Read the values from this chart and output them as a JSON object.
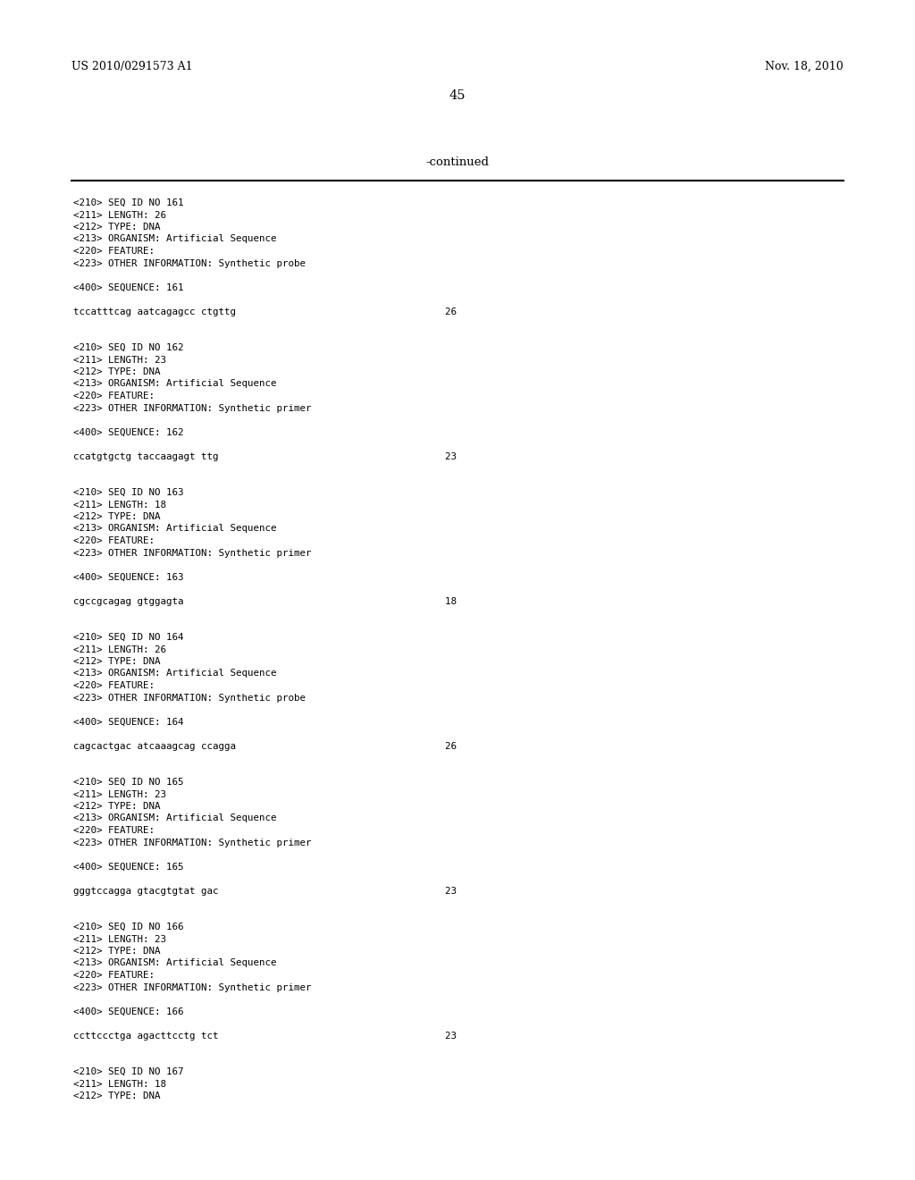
{
  "background_color": "#ffffff",
  "page_number": "45",
  "header_left": "US 2010/0291573 A1",
  "header_right": "Nov. 18, 2010",
  "continued_label": "-continued",
  "monospace_fontsize": 7.8,
  "header_fontsize": 9.0,
  "page_num_fontsize": 10.5,
  "continued_fontsize": 9.5,
  "content": [
    "<210> SEQ ID NO 161",
    "<211> LENGTH: 26",
    "<212> TYPE: DNA",
    "<213> ORGANISM: Artificial Sequence",
    "<220> FEATURE:",
    "<223> OTHER INFORMATION: Synthetic probe",
    "",
    "<400> SEQUENCE: 161",
    "",
    "tccatttcag aatcagagcc ctgttg                                    26",
    "",
    "",
    "<210> SEQ ID NO 162",
    "<211> LENGTH: 23",
    "<212> TYPE: DNA",
    "<213> ORGANISM: Artificial Sequence",
    "<220> FEATURE:",
    "<223> OTHER INFORMATION: Synthetic primer",
    "",
    "<400> SEQUENCE: 162",
    "",
    "ccatgtgctg taccaagagt ttg                                       23",
    "",
    "",
    "<210> SEQ ID NO 163",
    "<211> LENGTH: 18",
    "<212> TYPE: DNA",
    "<213> ORGANISM: Artificial Sequence",
    "<220> FEATURE:",
    "<223> OTHER INFORMATION: Synthetic primer",
    "",
    "<400> SEQUENCE: 163",
    "",
    "cgccgcagag gtggagta                                             18",
    "",
    "",
    "<210> SEQ ID NO 164",
    "<211> LENGTH: 26",
    "<212> TYPE: DNA",
    "<213> ORGANISM: Artificial Sequence",
    "<220> FEATURE:",
    "<223> OTHER INFORMATION: Synthetic probe",
    "",
    "<400> SEQUENCE: 164",
    "",
    "cagcactgac atcaaagcag ccagga                                    26",
    "",
    "",
    "<210> SEQ ID NO 165",
    "<211> LENGTH: 23",
    "<212> TYPE: DNA",
    "<213> ORGANISM: Artificial Sequence",
    "<220> FEATURE:",
    "<223> OTHER INFORMATION: Synthetic primer",
    "",
    "<400> SEQUENCE: 165",
    "",
    "gggtccagga gtacgtgtat gac                                       23",
    "",
    "",
    "<210> SEQ ID NO 166",
    "<211> LENGTH: 23",
    "<212> TYPE: DNA",
    "<213> ORGANISM: Artificial Sequence",
    "<220> FEATURE:",
    "<223> OTHER INFORMATION: Synthetic primer",
    "",
    "<400> SEQUENCE: 166",
    "",
    "ccttccctga agacttcctg tct                                       23",
    "",
    "",
    "<210> SEQ ID NO 167",
    "<211> LENGTH: 18",
    "<212> TYPE: DNA"
  ]
}
